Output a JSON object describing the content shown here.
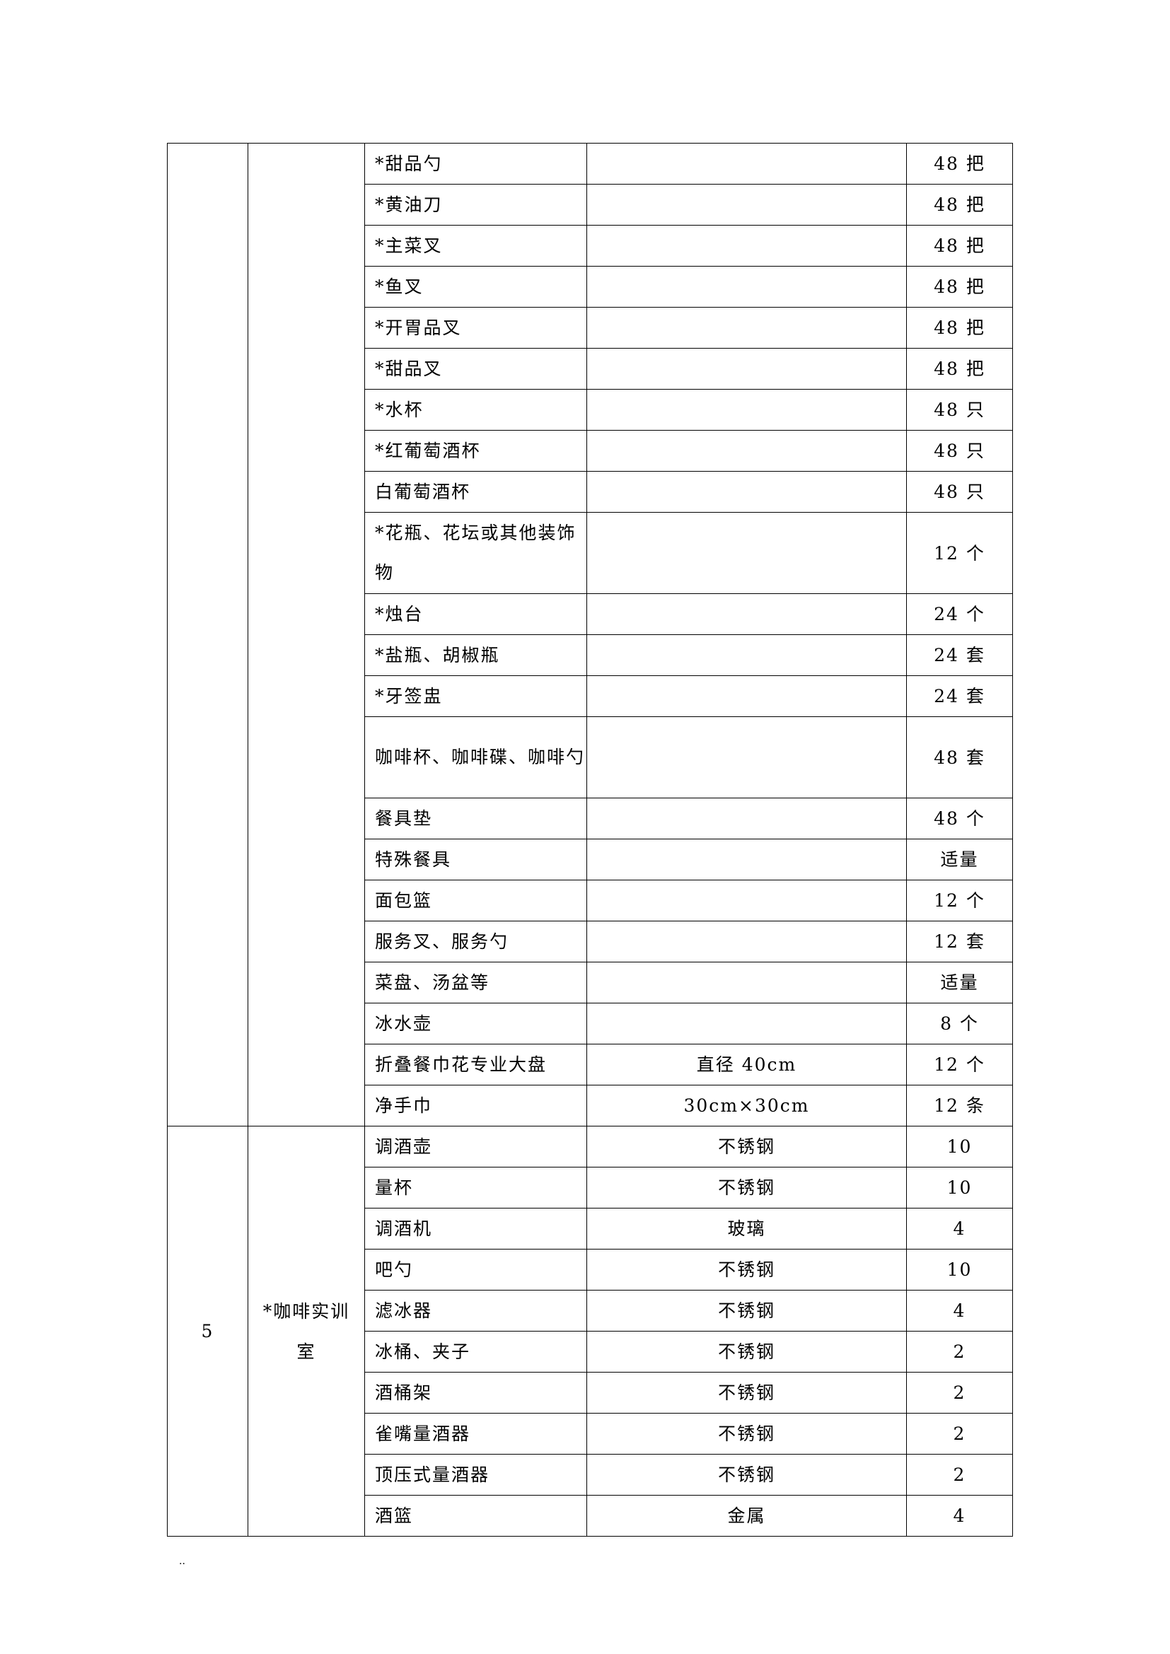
{
  "sections": [
    {
      "number": "",
      "room": "",
      "items": [
        {
          "name": "*甜品勺",
          "spec": "",
          "qty": "48 把"
        },
        {
          "name": "*黄油刀",
          "spec": "",
          "qty": "48 把"
        },
        {
          "name": "*主菜叉",
          "spec": "",
          "qty": "48 把"
        },
        {
          "name": "*鱼叉",
          "spec": "",
          "qty": "48 把"
        },
        {
          "name": "*开胃品叉",
          "spec": "",
          "qty": "48 把"
        },
        {
          "name": "*甜品叉",
          "spec": "",
          "qty": "48 把"
        },
        {
          "name": "*水杯",
          "spec": "",
          "qty": "48 只"
        },
        {
          "name": "*红葡萄酒杯",
          "spec": "",
          "qty": "48 只"
        },
        {
          "name": "白葡萄酒杯",
          "spec": "",
          "qty": "48 只"
        },
        {
          "name": "*花瓶、花坛或其他装饰物",
          "spec": "",
          "qty": "12 个",
          "tall": true
        },
        {
          "name": "*烛台",
          "spec": "",
          "qty": "24 个"
        },
        {
          "name": "*盐瓶、胡椒瓶",
          "spec": "",
          "qty": "24 套"
        },
        {
          "name": "*牙签盅",
          "spec": "",
          "qty": "24 套"
        },
        {
          "name": "咖啡杯、咖啡碟、咖啡勺",
          "spec": "",
          "qty": "48 套",
          "tall": true
        },
        {
          "name": "餐具垫",
          "spec": "",
          "qty": "48 个"
        },
        {
          "name": "特殊餐具",
          "spec": "",
          "qty": "适量"
        },
        {
          "name": "面包篮",
          "spec": "",
          "qty": "12 个"
        },
        {
          "name": "服务叉、服务勺",
          "spec": "",
          "qty": "12 套"
        },
        {
          "name": "菜盘、汤盆等",
          "spec": "",
          "qty": "适量"
        },
        {
          "name": "冰水壶",
          "spec": "",
          "qty": "8 个"
        },
        {
          "name": "折叠餐巾花专业大盘",
          "spec": "直径 40cm",
          "qty": "12 个"
        },
        {
          "name": "净手巾",
          "spec": "30cm×30cm",
          "qty": "12 条"
        }
      ]
    },
    {
      "number": "5",
      "room": "*咖啡实训室",
      "items": [
        {
          "name": "调酒壶",
          "spec": "不锈钢",
          "qty": "10"
        },
        {
          "name": "量杯",
          "spec": "不锈钢",
          "qty": "10"
        },
        {
          "name": "调酒机",
          "spec": "玻璃",
          "qty": "4"
        },
        {
          "name": "吧勺",
          "spec": "不锈钢",
          "qty": "10"
        },
        {
          "name": "滤冰器",
          "spec": "不锈钢",
          "qty": "4"
        },
        {
          "name": "冰桶、夹子",
          "spec": "不锈钢",
          "qty": "2"
        },
        {
          "name": "酒桶架",
          "spec": "不锈钢",
          "qty": "2"
        },
        {
          "name": "雀嘴量酒器",
          "spec": "不锈钢",
          "qty": "2"
        },
        {
          "name": "顶压式量酒器",
          "spec": "不锈钢",
          "qty": "2"
        },
        {
          "name": "酒篮",
          "spec": "金属",
          "qty": "4"
        }
      ]
    }
  ],
  "footer": ".."
}
